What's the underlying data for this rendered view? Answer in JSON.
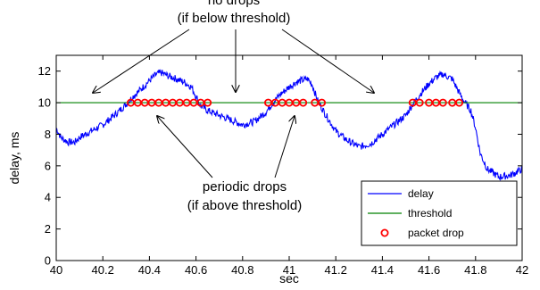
{
  "chart_data": {
    "type": "line",
    "title": "",
    "xlabel": "sec",
    "ylabel": "delay, ms",
    "xlim": [
      40,
      42
    ],
    "ylim": [
      0,
      13
    ],
    "xticks": [
      "40",
      "40.2",
      "40.4",
      "40.6",
      "40.8",
      "41",
      "41.2",
      "41.4",
      "41.6",
      "41.8",
      "42"
    ],
    "yticks": [
      "0",
      "2",
      "4",
      "6",
      "8",
      "10",
      "12"
    ],
    "grid": false,
    "legend_position": "bottom-right",
    "series": [
      {
        "name": "delay",
        "color": "#0000ff",
        "x": [
          40.0,
          40.02,
          40.05,
          40.08,
          40.1,
          40.15,
          40.2,
          40.25,
          40.3,
          40.33,
          40.36,
          40.4,
          40.43,
          40.45,
          40.48,
          40.5,
          40.55,
          40.58,
          40.6,
          40.62,
          40.65,
          40.7,
          40.75,
          40.8,
          40.85,
          40.9,
          40.93,
          40.96,
          41.0,
          41.03,
          41.05,
          41.08,
          41.1,
          41.12,
          41.15,
          41.2,
          41.25,
          41.3,
          41.35,
          41.4,
          41.45,
          41.5,
          41.53,
          41.56,
          41.6,
          41.63,
          41.66,
          41.7,
          41.72,
          41.75,
          41.78,
          41.8,
          41.82,
          41.85,
          41.9,
          41.95,
          42.0
        ],
        "y": [
          8.4,
          7.8,
          7.5,
          7.5,
          7.8,
          8.2,
          8.6,
          9.2,
          9.9,
          10.4,
          10.8,
          11.4,
          11.8,
          11.9,
          11.7,
          11.6,
          11.3,
          11.0,
          10.4,
          9.8,
          9.5,
          9.2,
          8.9,
          8.6,
          8.8,
          9.4,
          10.0,
          10.5,
          11.0,
          11.3,
          11.4,
          11.5,
          11.1,
          10.2,
          9.4,
          8.2,
          7.6,
          7.2,
          7.4,
          8.0,
          8.6,
          9.2,
          9.9,
          10.5,
          11.2,
          11.6,
          11.8,
          11.5,
          10.9,
          10.1,
          9.5,
          8.4,
          6.8,
          5.8,
          5.3,
          5.4,
          5.8
        ]
      },
      {
        "name": "threshold",
        "color": "#008000",
        "x": [
          40,
          42
        ],
        "y": [
          10,
          10
        ]
      },
      {
        "name": "packet drop",
        "color": "#ff0000",
        "marker": "circle",
        "x": [
          40.32,
          40.35,
          40.38,
          40.41,
          40.44,
          40.47,
          40.5,
          40.53,
          40.56,
          40.59,
          40.62,
          40.65,
          40.91,
          40.94,
          40.97,
          41.0,
          41.03,
          41.06,
          41.11,
          41.14,
          41.53,
          41.56,
          41.6,
          41.63,
          41.66,
          41.7,
          41.73
        ],
        "y": [
          10,
          10,
          10,
          10,
          10,
          10,
          10,
          10,
          10,
          10,
          10,
          10,
          10,
          10,
          10,
          10,
          10,
          10,
          10,
          10,
          10,
          10,
          10,
          10,
          10,
          10,
          10
        ]
      }
    ],
    "annotations": [
      {
        "id": "no-drops",
        "lines": [
          "no drops",
          "(if below threshold)"
        ]
      },
      {
        "id": "periodic-drops",
        "lines": [
          "periodic drops",
          "(if above threshold)"
        ]
      }
    ]
  }
}
